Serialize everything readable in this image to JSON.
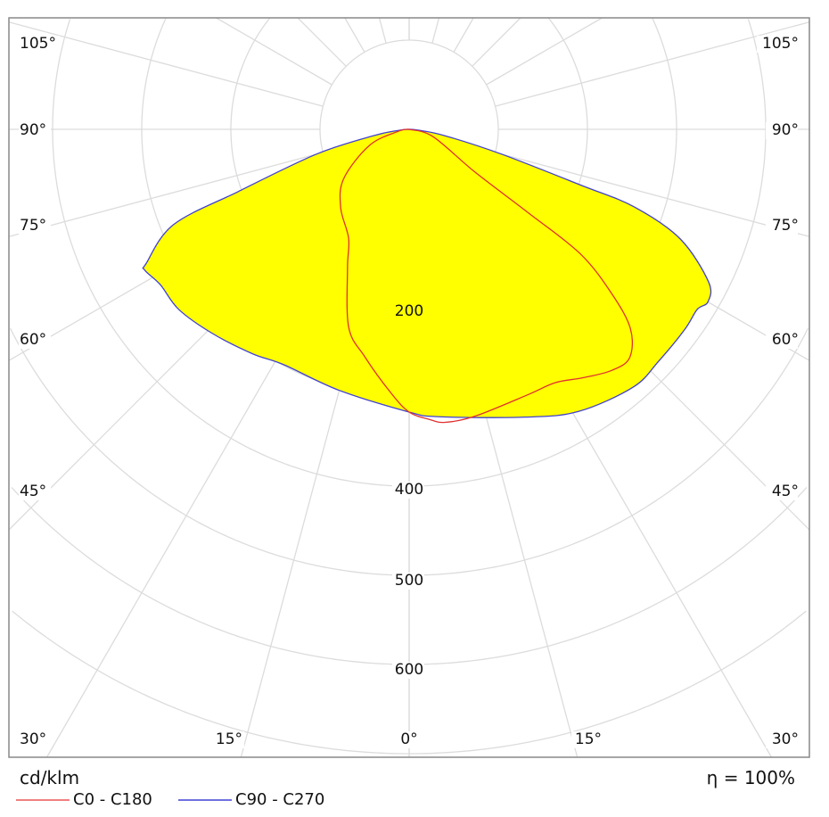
{
  "chart_data": {
    "type": "polar",
    "unit": "cd/klm",
    "efficiency": "η = 100%",
    "radial_ticks": [
      100,
      200,
      300,
      400,
      500,
      600,
      700
    ],
    "radial_labels": [
      "200",
      "400",
      "500",
      "600"
    ],
    "angle_labels_side": [
      "105°",
      "90°",
      "75°",
      "60°",
      "45°",
      "30°"
    ],
    "angle_labels_bottom": [
      "15°",
      "0°",
      "15°"
    ],
    "angle_step_deg": 15,
    "grid": true,
    "legend_placement": "bottom-left",
    "series": [
      {
        "name": "C0 - C180",
        "color": "#e03030",
        "fill": "none",
        "left": [
          [
            0,
            317
          ],
          [
            4,
            296
          ],
          [
            11,
            260
          ],
          [
            17,
            232
          ],
          [
            24,
            170
          ],
          [
            29,
            140
          ],
          [
            41,
            117
          ],
          [
            53,
            92
          ],
          [
            68,
            48
          ],
          [
            80,
            12
          ],
          [
            90,
            0
          ]
        ],
        "right": [
          [
            0,
            317
          ],
          [
            4,
            326
          ],
          [
            7,
            331
          ],
          [
            13,
            330
          ],
          [
            24,
            326
          ],
          [
            30,
            328
          ],
          [
            35,
            340
          ],
          [
            40,
            353
          ],
          [
            44,
            356
          ],
          [
            48,
            334
          ],
          [
            51,
            292
          ],
          [
            54,
            237
          ],
          [
            55,
            163
          ],
          [
            57,
            88
          ],
          [
            73,
            28
          ],
          [
            90,
            0
          ]
        ]
      },
      {
        "name": "C90 - C270",
        "color": "#4040d0",
        "fill": "#ffff00",
        "left": [
          [
            0,
            317
          ],
          [
            15,
            303
          ],
          [
            28,
            299
          ],
          [
            35,
            307
          ],
          [
            44,
            318
          ],
          [
            52,
            328
          ],
          [
            58,
            329
          ],
          [
            62,
            336
          ],
          [
            63,
            331
          ],
          [
            68,
            285
          ],
          [
            70,
            204
          ],
          [
            75,
            108
          ],
          [
            80,
            40
          ],
          [
            85,
            10
          ],
          [
            90,
            0
          ]
        ],
        "right": [
          [
            0,
            317
          ],
          [
            6,
            324
          ],
          [
            22,
            348
          ],
          [
            31,
            369
          ],
          [
            41,
            383
          ],
          [
            47,
            382
          ],
          [
            54,
            382
          ],
          [
            58,
            381
          ],
          [
            60,
            387
          ],
          [
            63,
            377
          ],
          [
            68,
            328
          ],
          [
            71,
            267
          ],
          [
            72,
            203
          ],
          [
            75,
            107
          ],
          [
            80,
            40
          ],
          [
            85,
            10
          ],
          [
            90,
            0
          ]
        ]
      }
    ]
  }
}
